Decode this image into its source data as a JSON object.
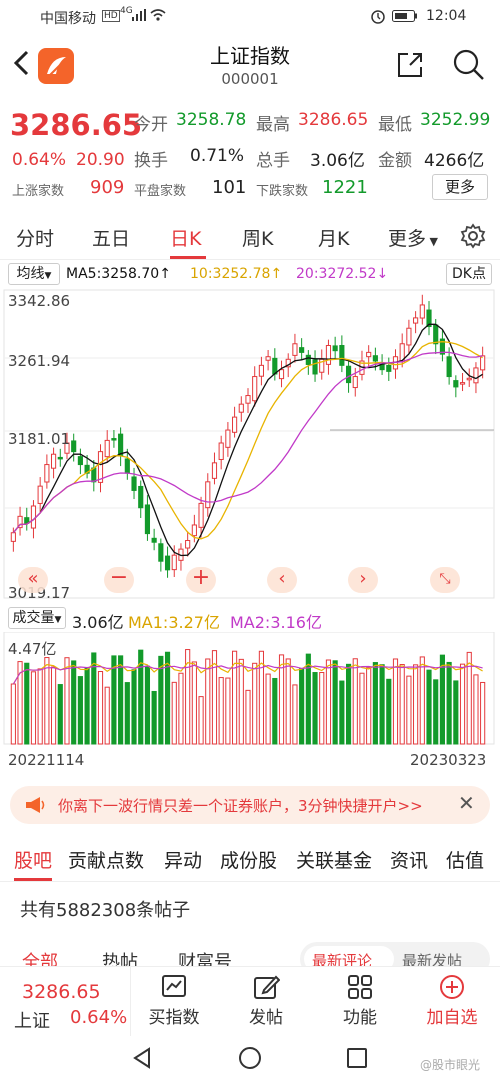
{
  "status_bar": {
    "carrier": "中国移动",
    "hd": "HD",
    "net": "4G",
    "time": "12:04"
  },
  "header": {
    "title": "上证指数",
    "code": "000001"
  },
  "quote": {
    "price": "3286.65",
    "change_pct": "0.64%",
    "change": "20.90",
    "open_label": "今开",
    "open": "3258.78",
    "high_label": "最高",
    "high": "3286.65",
    "low_label": "最低",
    "low": "3252.99",
    "turnover_label": "换手",
    "turnover": "0.71%",
    "volume_label": "总手",
    "volume": "3.06亿",
    "amount_label": "金额",
    "amount": "4266亿",
    "up_label": "上涨家数",
    "up": "909",
    "flat_label": "平盘家数",
    "flat": "101",
    "down_label": "下跌家数",
    "down": "1221",
    "more": "更多"
  },
  "tabs": [
    "分时",
    "五日",
    "日K",
    "周K",
    "月K",
    "更多"
  ],
  "active_tab": 2,
  "ma_bar": {
    "mode": "均线",
    "ma5": "MA5:3258.70",
    "ma10": "10:3252.78",
    "ma20": "20:3272.52",
    "dk": "DK点"
  },
  "price_axis": {
    "top": "3342.86",
    "mid1": "3261.94",
    "mid2": "3181.01",
    "bottom": "3019.17"
  },
  "vol_bar": {
    "label": "成交量",
    "vol": "3.06亿",
    "ma1": "MA1:3.27亿",
    "ma2": "MA2:3.16亿",
    "max": "4.47亿"
  },
  "dates": {
    "start": "20221114",
    "end": "20230323"
  },
  "colors": {
    "up": "#e4393c",
    "down": "#139a2b",
    "ma5": "#111111",
    "ma10": "#e8b400",
    "ma20": "#c13ac8"
  },
  "chart_data": {
    "type": "candlestick",
    "x_range": [
      "20221114",
      "20230323"
    ],
    "ylim": [
      3019.17,
      3342.86
    ],
    "ticks": [
      3342.86,
      3261.94,
      3181.01,
      3019.17
    ],
    "volume_max": "4.47亿"
  },
  "banner": {
    "text": "你离下一波行情只差一个证券账户，3分钟快捷开户>>"
  },
  "news_tabs": [
    "股吧",
    "贡献点数",
    "异动",
    "成份股",
    "关联基金",
    "资讯",
    "估值"
  ],
  "posts": {
    "count_text": "共有5882308条帖子"
  },
  "sub_tabs": {
    "all": "全部",
    "hot": "热帖",
    "fortune": "财富号",
    "latest_comment": "最新评论",
    "latest_post": "最新发帖"
  },
  "bottom_bar": {
    "price": "3286.65",
    "name": "上证",
    "pct": "0.64%",
    "buy": "买指数",
    "post": "发帖",
    "func": "功能",
    "add": "加自选"
  },
  "watermark": "@股市眼光"
}
